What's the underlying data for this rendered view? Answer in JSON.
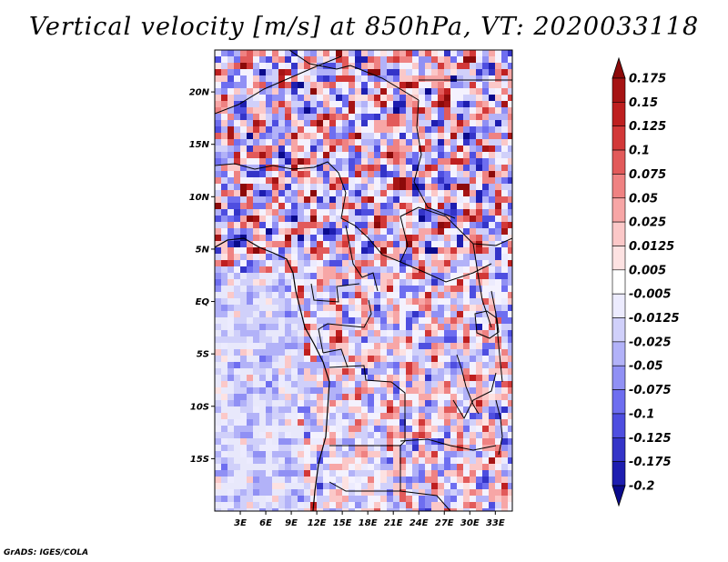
{
  "title": "Vertical velocity [m/s] at 850hPa, VT: 2020033118",
  "credit": "GrADS: IGES/COLA",
  "map": {
    "lat_range": [
      -20,
      24
    ],
    "lon_range": [
      0,
      35
    ],
    "lat_ticks": [
      {
        "label": "20N",
        "value": 20
      },
      {
        "label": "15N",
        "value": 15
      },
      {
        "label": "10N",
        "value": 10
      },
      {
        "label": "5N",
        "value": 5
      },
      {
        "label": "EQ",
        "value": 0
      },
      {
        "label": "5S",
        "value": -5
      },
      {
        "label": "10S",
        "value": -10
      },
      {
        "label": "15S",
        "value": -15
      }
    ],
    "lon_ticks": [
      {
        "label": "3E",
        "value": 3
      },
      {
        "label": "6E",
        "value": 6
      },
      {
        "label": "9E",
        "value": 9
      },
      {
        "label": "12E",
        "value": 12
      },
      {
        "label": "15E",
        "value": 15
      },
      {
        "label": "18E",
        "value": 18
      },
      {
        "label": "21E",
        "value": 21
      },
      {
        "label": "24E",
        "value": 24
      },
      {
        "label": "27E",
        "value": 27
      },
      {
        "label": "30E",
        "value": 30
      },
      {
        "label": "33E",
        "value": 33
      }
    ]
  },
  "colorbar": {
    "colors": [
      "#0a0a8c",
      "#1e1eb0",
      "#3434c8",
      "#4e4ee0",
      "#6e6ef0",
      "#9090f4",
      "#b2b2f8",
      "#d0d0fa",
      "#ecebfe",
      "#ffffff",
      "#fde2e2",
      "#fbc8c8",
      "#f7a6a6",
      "#ef8282",
      "#e25a5a",
      "#d23838",
      "#be1f1f",
      "#a61414",
      "#8c0a0a"
    ],
    "levels": [
      "0.175",
      "0.15",
      "0.125",
      "0.1",
      "0.075",
      "0.05",
      "0.025",
      "0.0125",
      "0.005",
      "-0.005",
      "-0.0125",
      "-0.025",
      "-0.05",
      "-0.075",
      "-0.1",
      "-0.125",
      "-0.175",
      "-0.2"
    ]
  },
  "legend_colors": {
    "land_low": "#cfcff5",
    "ocean": "#e6e6fb",
    "up": "#b51f1f",
    "down": "#2b2bb8"
  }
}
